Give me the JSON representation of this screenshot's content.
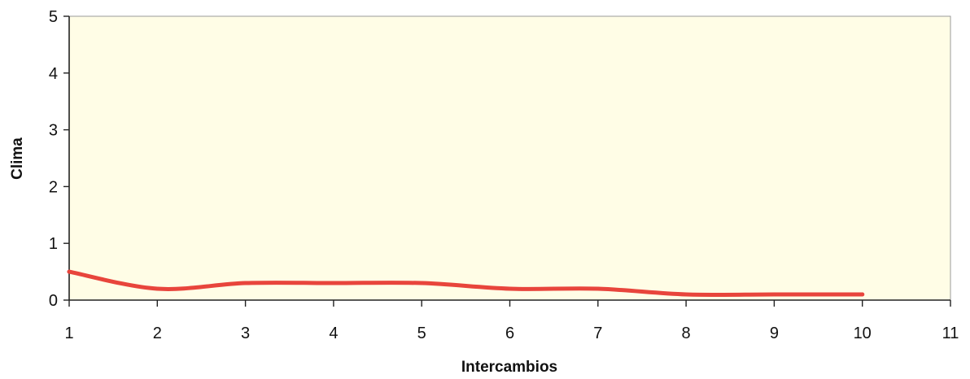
{
  "chart_data": {
    "type": "line",
    "title": "",
    "xlabel": "Intercambios",
    "ylabel": "Clima",
    "xlim": [
      1,
      11
    ],
    "ylim": [
      0,
      5
    ],
    "xticks": [
      1,
      2,
      3,
      4,
      5,
      6,
      7,
      8,
      9,
      10,
      11
    ],
    "yticks": [
      0,
      1,
      2,
      3,
      4,
      5
    ],
    "grid": false,
    "legend": "none",
    "series": [
      {
        "x": [
          1,
          2,
          3,
          4,
          5,
          6,
          7,
          8,
          9,
          10
        ],
        "values": [
          0.5,
          0.2,
          0.3,
          0.3,
          0.3,
          0.2,
          0.2,
          0.1,
          0.1,
          0.1
        ],
        "color": "#e8453c"
      }
    ],
    "plot_background": "#fffde6"
  }
}
